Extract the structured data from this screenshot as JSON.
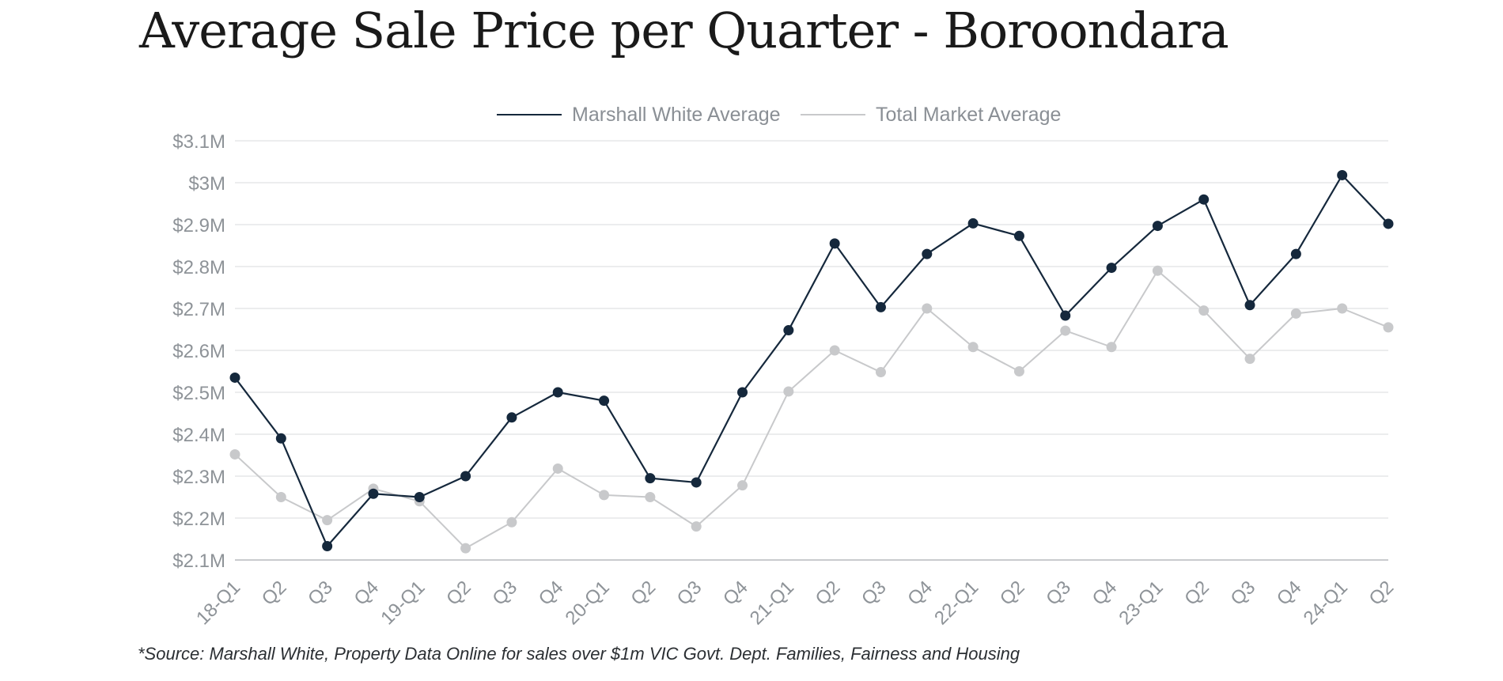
{
  "title": "Average Sale Price per Quarter - Boroondara",
  "source": "*Source: Marshall White, Property Data Online for sales over $1m VIC Govt. Dept. Families, Fairness and Housing",
  "colors": {
    "marshall": "#15283c",
    "market": "#c8c9cb",
    "grid": "#e6e7e9"
  },
  "chart_data": {
    "type": "line",
    "categories": [
      "18-Q1",
      "Q2",
      "Q3",
      "Q4",
      "19-Q1",
      "Q2",
      "Q3",
      "Q4",
      "20-Q1",
      "Q2",
      "Q3",
      "Q4",
      "21-Q1",
      "Q2",
      "Q3",
      "Q4",
      "22-Q1",
      "Q2",
      "Q3",
      "Q4",
      "23-Q1",
      "Q2",
      "Q3",
      "Q4",
      "24-Q1",
      "Q2"
    ],
    "series": [
      {
        "name": "Marshall White Average",
        "color": "#15283c",
        "values": [
          2.535,
          2.39,
          2.133,
          2.258,
          2.25,
          2.3,
          2.44,
          2.5,
          2.48,
          2.295,
          2.285,
          2.5,
          2.648,
          2.855,
          2.703,
          2.83,
          2.903,
          2.873,
          2.683,
          2.797,
          2.897,
          2.96,
          2.708,
          2.83,
          3.018,
          2.902
        ]
      },
      {
        "name": "Total Market Average",
        "color": "#c8c9cb",
        "values": [
          2.352,
          2.25,
          2.195,
          2.27,
          2.24,
          2.128,
          2.19,
          2.318,
          2.255,
          2.25,
          2.18,
          2.278,
          2.502,
          2.6,
          2.548,
          2.7,
          2.608,
          2.55,
          2.647,
          2.608,
          2.79,
          2.695,
          2.58,
          2.688,
          2.7,
          2.655
        ]
      }
    ],
    "y_ticks": [
      "$2.1M",
      "$2.2M",
      "$2.3M",
      "$2.4M",
      "$2.5M",
      "$2.6M",
      "$2.7M",
      "$2.8M",
      "$2.9M",
      "$3M",
      "$3.1M"
    ],
    "ylim": [
      2.1,
      3.1
    ],
    "unit": "$M",
    "grid": true,
    "legend_position": "top-center",
    "xlabel": "",
    "ylabel": ""
  }
}
